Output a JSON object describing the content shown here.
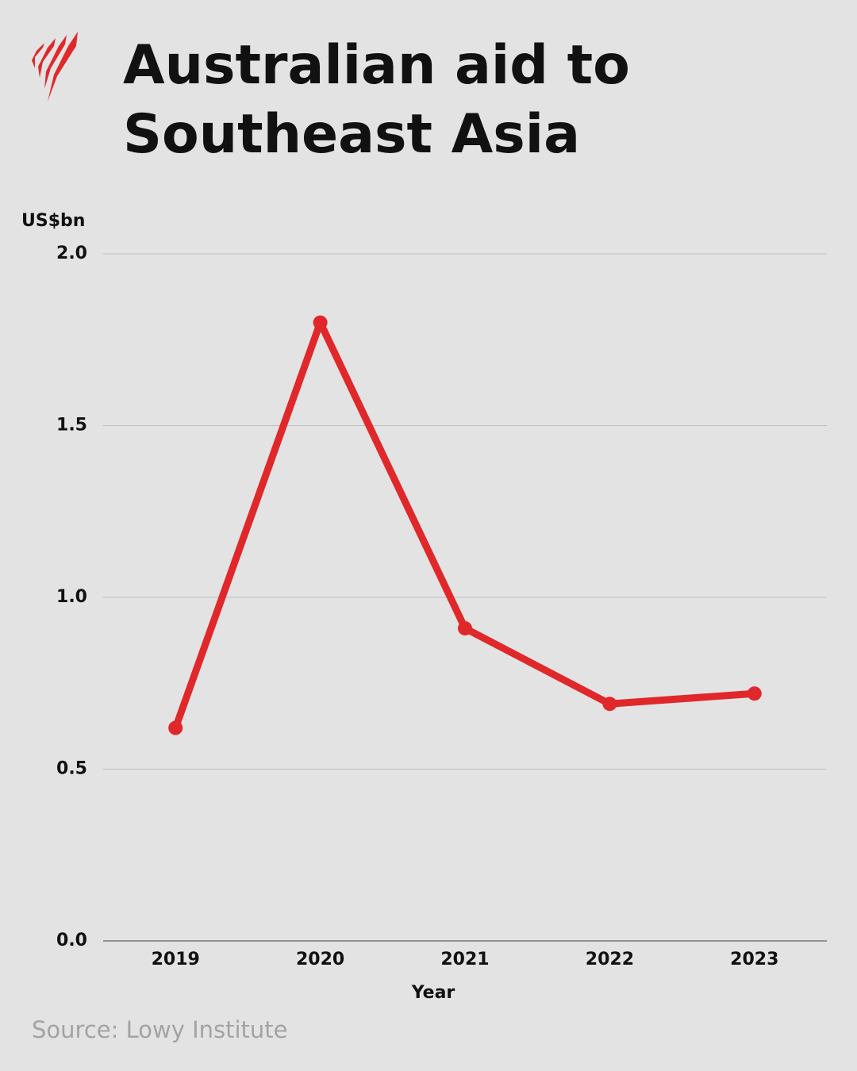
{
  "chart_data": {
    "type": "line",
    "title": "Australian aid to Southeast Asia",
    "y_label": "US$bn",
    "x_label": "Year",
    "source": "Source: Lowy Institute",
    "categories": [
      "2019",
      "2020",
      "2021",
      "2022",
      "2023"
    ],
    "series": [
      {
        "name": "Australian aid",
        "color": "#e0282b",
        "values": [
          0.62,
          1.8,
          0.91,
          0.69,
          0.72
        ]
      }
    ],
    "ylim": [
      0,
      2
    ],
    "yticks": [
      {
        "value": 0,
        "label": "0.0"
      },
      {
        "value": 0.5,
        "label": "0.5"
      },
      {
        "value": 1,
        "label": "1.0"
      },
      {
        "value": 1.5,
        "label": "1.5"
      },
      {
        "value": 2,
        "label": "2.0"
      }
    ],
    "grid": true
  }
}
